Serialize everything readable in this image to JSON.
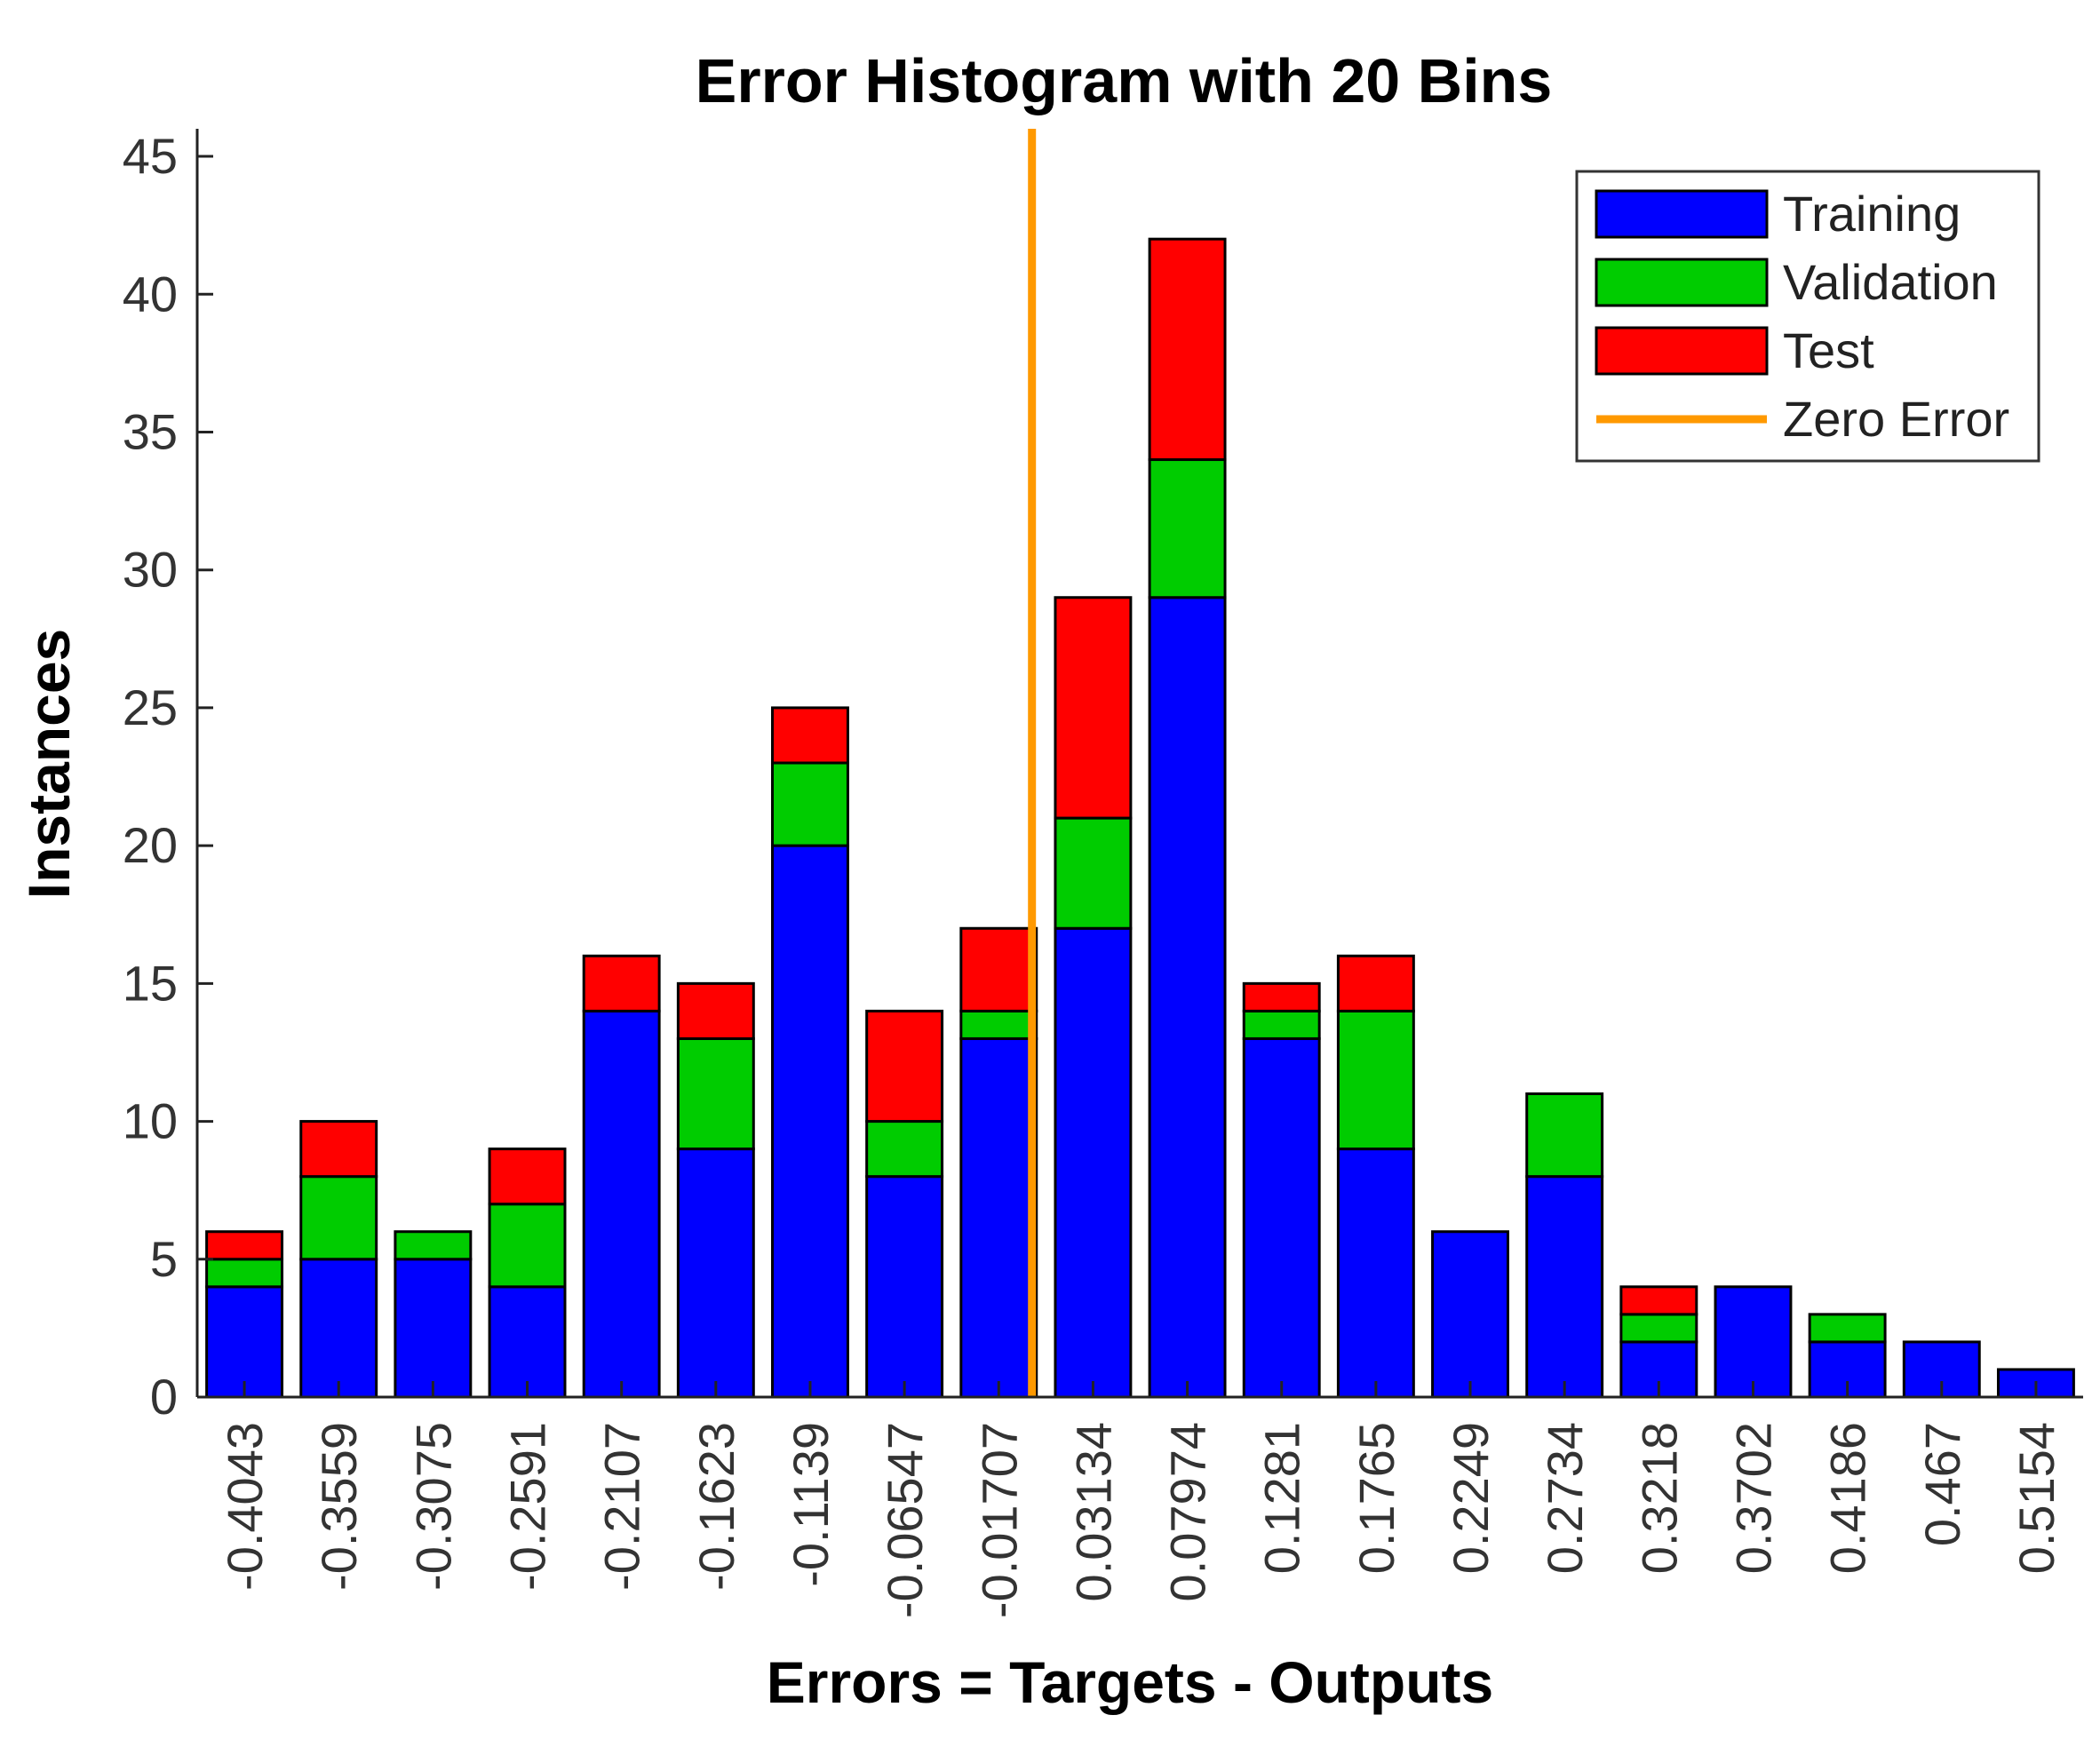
{
  "chart_data": {
    "type": "bar",
    "stacked": true,
    "title": "Error Histogram with 20 Bins",
    "xlabel": "Errors = Targets - Outputs",
    "ylabel": "Instances",
    "ylim": [
      0,
      46
    ],
    "yticks": [
      0,
      5,
      10,
      15,
      20,
      25,
      30,
      35,
      40,
      45
    ],
    "categories": [
      "-0.4043",
      "-0.3559",
      "-0.3075",
      "-0.2591",
      "-0.2107",
      "-0.1623",
      "-0.1139",
      "-0.06547",
      "-0.01707",
      "0.03134",
      "0.07974",
      "0.1281",
      "0.1765",
      "0.2249",
      "0.2734",
      "0.3218",
      "0.3702",
      "0.4186",
      "0.467",
      "0.5154"
    ],
    "series": [
      {
        "name": "Training",
        "color": "#0000ff",
        "values": [
          4,
          5,
          5,
          4,
          14,
          9,
          20,
          8,
          13,
          17,
          29,
          13,
          9,
          6,
          8,
          2,
          4,
          2,
          2,
          1
        ]
      },
      {
        "name": "Validation",
        "color": "#00cc00",
        "values": [
          1,
          3,
          1,
          3,
          0,
          4,
          3,
          2,
          1,
          4,
          5,
          1,
          5,
          0,
          3,
          1,
          0,
          1,
          0,
          0
        ]
      },
      {
        "name": "Test",
        "color": "#ff0000",
        "values": [
          1,
          2,
          0,
          2,
          2,
          2,
          2,
          4,
          3,
          8,
          8,
          1,
          2,
          0,
          0,
          1,
          0,
          0,
          0,
          0
        ]
      }
    ],
    "zero_error": {
      "name": "Zero Error",
      "color": "#ff9900",
      "x": 0
    },
    "grid": false,
    "legend_position": "top-right"
  }
}
